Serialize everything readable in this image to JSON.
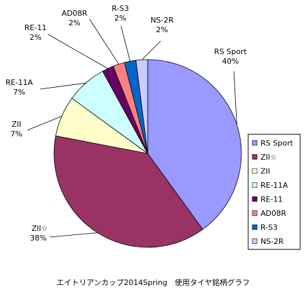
{
  "chart_data": {
    "type": "pie",
    "title": "エイトリアンカップ2014Spring　使用タイヤ銘柄グラフ",
    "legend_position": "right",
    "slices": [
      {
        "name": "RS Sport",
        "value": 40,
        "label": "40%",
        "color": "#9999FF"
      },
      {
        "name": "ZII☆",
        "value": 38,
        "label": "38%",
        "color": "#993366"
      },
      {
        "name": "ZII",
        "value": 7,
        "label": "7%",
        "color": "#FFFFCC"
      },
      {
        "name": "RE-11A",
        "value": 7,
        "label": "7%",
        "color": "#CCFFFF"
      },
      {
        "name": "RE-11",
        "value": 2,
        "label": "2%",
        "color": "#660066"
      },
      {
        "name": "AD08R",
        "value": 2,
        "label": "2%",
        "color": "#FF8080"
      },
      {
        "name": "R-S3",
        "value": 2,
        "label": "2%",
        "color": "#0066CC"
      },
      {
        "name": "NS-2R",
        "value": 2,
        "label": "2%",
        "color": "#CCCCFF"
      }
    ]
  }
}
